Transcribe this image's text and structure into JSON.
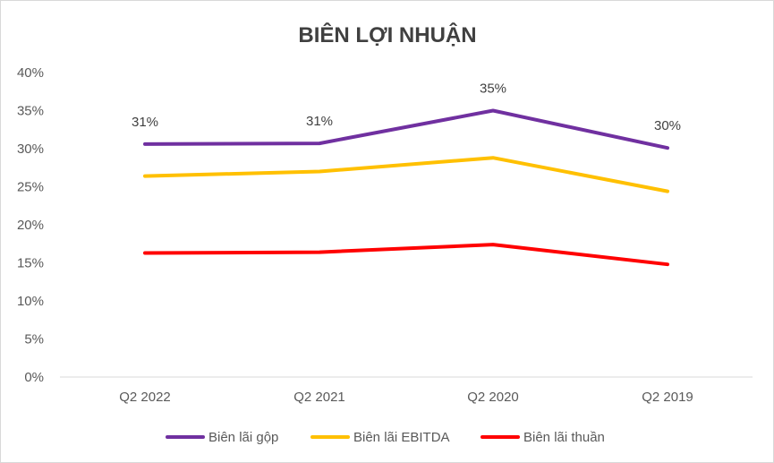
{
  "chart_data": {
    "type": "line",
    "title": "BIÊN LỢI NHUẬN",
    "xlabel": "",
    "ylabel": "",
    "categories": [
      "Q2 2022",
      "Q2 2021",
      "Q2 2020",
      "Q2 2019"
    ],
    "ylim": [
      0,
      0.4
    ],
    "yticks": [
      0,
      0.05,
      0.1,
      0.15,
      0.2,
      0.25,
      0.3,
      0.35,
      0.4
    ],
    "ytick_labels": [
      "0%",
      "5%",
      "10%",
      "15%",
      "20%",
      "25%",
      "30%",
      "35%",
      "40%"
    ],
    "grid": false,
    "legend_position": "bottom",
    "series": [
      {
        "name": "Biên lãi gộp",
        "color": "#7030a0",
        "values": [
          0.306,
          0.307,
          0.35,
          0.301
        ],
        "data_labels": [
          "31%",
          "31%",
          "35%",
          "30%"
        ]
      },
      {
        "name": "Biên lãi EBITDA",
        "color": "#ffc000",
        "values": [
          0.264,
          0.27,
          0.288,
          0.244
        ]
      },
      {
        "name": "Biên lãi thuần",
        "color": "#ff0000",
        "values": [
          0.163,
          0.164,
          0.174,
          0.148
        ]
      }
    ]
  }
}
